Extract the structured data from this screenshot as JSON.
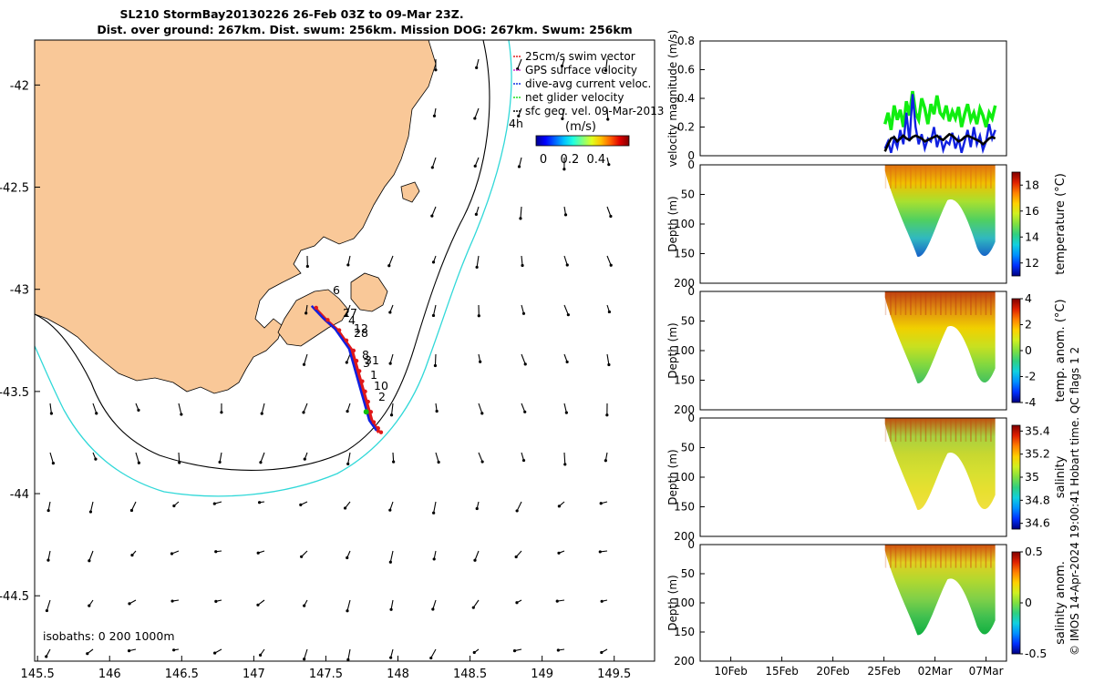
{
  "header": {
    "title_line1": "SL210 StormBay20130226 26-Feb 03Z to 09-Mar 23Z.",
    "title_line2": "Dist. over ground: 267km. Dist. swum: 256km. Mission DOG: 267km. Swum: 256km"
  },
  "map": {
    "isobaths_label": "isobaths: 0   200  1000m",
    "time_label": "4h",
    "colorbar": {
      "label": "(m/s)",
      "ticks": [
        "0",
        "0.2",
        "0.4"
      ]
    },
    "legend": [
      {
        "text": "25cm/s swim vector",
        "color": "#e02020"
      },
      {
        "text": "GPS surface velocity",
        "color": "#d030d0"
      },
      {
        "text": "dive-avg current veloc.",
        "color": "#1030e0"
      },
      {
        "text": "net glider velocity",
        "color": "#20e020"
      },
      {
        "text": "sfc geo. vel. 09-Mar-2013",
        "color": "#000000"
      }
    ],
    "waypoint_labels": [
      "6",
      "27",
      "4",
      "12",
      "28",
      "8",
      "31",
      "3",
      "1",
      "10",
      "2"
    ],
    "colors": {
      "land": "#f9c898",
      "isobath_200": "#000000",
      "isobath_1000": "#30d8d8",
      "track_red": "#e01818",
      "track_blue": "#1020e0",
      "track_green": "#10c010"
    }
  },
  "chart_data": [
    {
      "type": "scatter",
      "name": "map",
      "xlabel": "",
      "ylabel": "",
      "xlim": [
        145.48,
        149.78
      ],
      "ylim": [
        -44.82,
        -41.78
      ],
      "x_ticks": [
        "145.5",
        "146",
        "146.5",
        "147",
        "147.5",
        "148",
        "148.5",
        "149",
        "149.5"
      ],
      "y_ticks": [
        "-42",
        "-42.5",
        "-43",
        "-43.5",
        "-44",
        "-44.5"
      ],
      "track": {
        "lon": [
          147.42,
          147.5,
          147.58,
          147.63,
          147.68,
          147.7,
          147.72,
          147.74,
          147.76,
          147.78,
          147.8,
          147.82,
          147.85,
          147.87
        ],
        "lat": [
          -43.09,
          -43.15,
          -43.2,
          -43.25,
          -43.3,
          -43.35,
          -43.4,
          -43.45,
          -43.5,
          -43.55,
          -43.6,
          -43.65,
          -43.68,
          -43.7
        ]
      }
    },
    {
      "type": "line",
      "name": "velocity",
      "ylabel": "velocity magnitude (m/s)",
      "ylim": [
        0,
        0.8
      ],
      "y_ticks": [
        "0",
        "0.2",
        "0.4",
        "0.6",
        "0.8"
      ],
      "series": [
        {
          "color": "#10ee10",
          "day_start": 25.1,
          "day_end": 35.9,
          "values": [
            0.22,
            0.3,
            0.18,
            0.35,
            0.25,
            0.32,
            0.2,
            0.38,
            0.28,
            0.45,
            0.3,
            0.25,
            0.4,
            0.33,
            0.22,
            0.36,
            0.29,
            0.42,
            0.3,
            0.27,
            0.35,
            0.24,
            0.31,
            0.26,
            0.34,
            0.2,
            0.29,
            0.36,
            0.25,
            0.3,
            0.22,
            0.33,
            0.28,
            0.2,
            0.3,
            0.26,
            0.35
          ]
        },
        {
          "color": "#1020e0",
          "day_start": 25.1,
          "day_end": 35.9,
          "values": [
            0.05,
            0.1,
            0.02,
            0.12,
            0.06,
            0.18,
            0.08,
            0.3,
            0.1,
            0.43,
            0.2,
            0.08,
            0.15,
            0.05,
            0.12,
            0.1,
            0.2,
            0.06,
            0.14,
            0.04,
            0.1,
            0.08,
            0.16,
            0.05,
            0.12,
            0.02,
            0.1,
            0.18,
            0.06,
            0.2,
            0.08,
            0.14,
            0.04,
            0.1,
            0.22,
            0.12,
            0.18
          ]
        },
        {
          "color": "#000000",
          "day_start": 25.1,
          "day_end": 35.9,
          "values": [
            0.03,
            0.08,
            0.12,
            0.13,
            0.1,
            0.12,
            0.14,
            0.12,
            0.11,
            0.13,
            0.14,
            0.13,
            0.12,
            0.1,
            0.11,
            0.12,
            0.13,
            0.14,
            0.12,
            0.11,
            0.13,
            0.15,
            0.14,
            0.12,
            0.1,
            0.11,
            0.13,
            0.14,
            0.13,
            0.12,
            0.11,
            0.1,
            0.08,
            0.1,
            0.12,
            0.13,
            0.12
          ]
        }
      ]
    },
    {
      "type": "heatmap",
      "name": "temperature",
      "ylabel": "Depth (m)",
      "ylim": [
        0,
        200
      ],
      "y_ticks": [
        "0",
        "50",
        "100",
        "150",
        "200"
      ],
      "colorbar": {
        "label": "temperature (°C)",
        "ticks": [
          "12",
          "14",
          "16",
          "18"
        ],
        "range": [
          11,
          19
        ]
      }
    },
    {
      "type": "heatmap",
      "name": "temp_anom",
      "ylabel": "Depth (m)",
      "ylim": [
        0,
        200
      ],
      "y_ticks": [
        "0",
        "50",
        "100",
        "150",
        "200"
      ],
      "colorbar": {
        "label": "temp. anom. (°C)",
        "ticks": [
          "-4",
          "-2",
          "0",
          "2",
          "4"
        ],
        "range": [
          -4,
          4
        ]
      }
    },
    {
      "type": "heatmap",
      "name": "salinity",
      "ylabel": "Depth (m)",
      "ylim": [
        0,
        200
      ],
      "y_ticks": [
        "0",
        "50",
        "100",
        "150",
        "200"
      ],
      "colorbar": {
        "label": "salinity",
        "ticks": [
          "34.6",
          "34.8",
          "35",
          "35.2",
          "35.4"
        ],
        "range": [
          34.55,
          35.45
        ]
      }
    },
    {
      "type": "heatmap",
      "name": "sal_anom",
      "ylabel": "Depth (m)",
      "ylim": [
        0,
        200
      ],
      "y_ticks": [
        "0",
        "50",
        "100",
        "150",
        "200"
      ],
      "colorbar": {
        "label": "salinity anom.",
        "ticks": [
          "-0.5",
          "0",
          "0.5"
        ],
        "range": [
          -0.5,
          0.5
        ]
      },
      "x_ticks": [
        "10Feb",
        "15Feb",
        "20Feb",
        "25Feb",
        "02Mar",
        "07Mar"
      ],
      "x_tick_days": [
        10,
        15,
        20,
        25,
        30,
        35
      ],
      "xlim_days": [
        7,
        37
      ]
    }
  ],
  "footer": {
    "credit": "© IMOS 14-Apr-2024 19:00:41 Hobart time. QC flags 1  2"
  }
}
